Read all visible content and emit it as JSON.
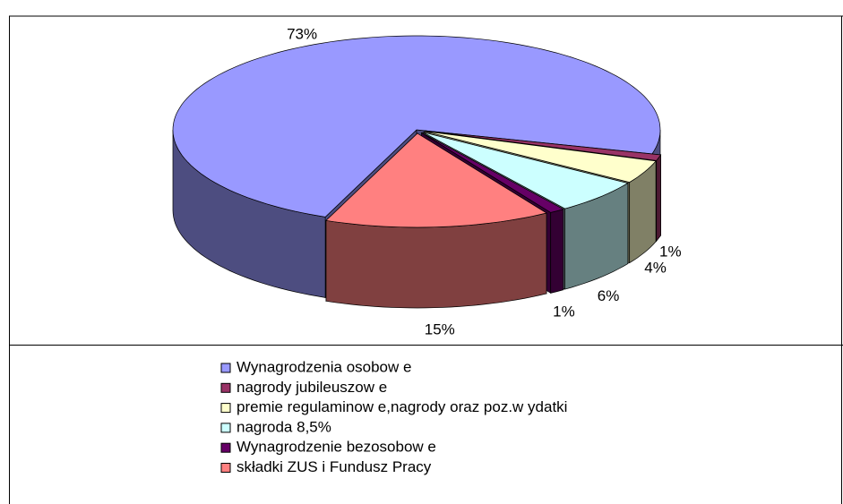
{
  "chart_data": {
    "type": "pie3d",
    "categories": [
      "Wynagrodzenia  osobow e",
      "nagrody jubileuszow e",
      "premie regulaminow e,nagrody oraz poz.w ydatki",
      "nagroda 8,5%",
      "Wynagrodzenie bezosobow e",
      "składki ZUS i Fundusz Pracy"
    ],
    "values": [
      73,
      1,
      4,
      6,
      1,
      15
    ],
    "value_labels": [
      "73%",
      "1%",
      "4%",
      "6%",
      "1%",
      "15%"
    ],
    "colors": [
      "#9999ff",
      "#993366",
      "#ffffcc",
      "#ccffff",
      "#660066",
      "#ff8080"
    ]
  }
}
